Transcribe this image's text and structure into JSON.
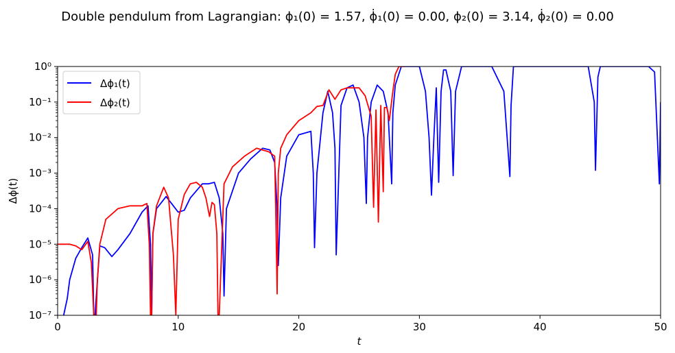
{
  "chart_data": {
    "type": "line",
    "title": "Double pendulum from Lagrangian:   ϕ₁(0) = 1.57,  ϕ̇₁(0) = 0.00,  ϕ₂(0) = 3.14,  ϕ̇₂(0) = 0.00",
    "xlabel": "t",
    "ylabel": "Δϕ(t)",
    "xlim": [
      0,
      50
    ],
    "ylim": [
      1e-07,
      1
    ],
    "yscale": "log",
    "grid": false,
    "legend_position": "top-left",
    "x_ticks": [
      0,
      10,
      20,
      30,
      40,
      50
    ],
    "x_tick_labels": [
      "0",
      "10",
      "20",
      "30",
      "40",
      "50"
    ],
    "y_ticks": [
      1e-07,
      1e-06,
      1e-05,
      0.0001,
      0.001,
      0.01,
      0.1,
      1
    ],
    "y_tick_labels": [
      "10⁻⁷",
      "10⁻⁶",
      "10⁻⁵",
      "10⁻⁴",
      "10⁻³",
      "10⁻²",
      "10⁻¹",
      "10⁰"
    ],
    "series": [
      {
        "name": "Δϕ₁(t)",
        "color": "#0000ff",
        "x": [
          0.5,
          0.8,
          1.0,
          1.5,
          2.0,
          2.5,
          2.9,
          3.0,
          3.1,
          3.5,
          3.9,
          4.5,
          5.0,
          6.0,
          7.0,
          7.5,
          7.7,
          7.8,
          7.9,
          8.2,
          9.0,
          10.0,
          10.5,
          11.0,
          12.0,
          12.5,
          13.0,
          13.4,
          13.7,
          13.8,
          14.0,
          15.0,
          16.0,
          17.0,
          17.6,
          18.0,
          18.2,
          18.3,
          18.5,
          19.0,
          20.0,
          21.0,
          21.2,
          21.3,
          21.5,
          22.0,
          22.4,
          22.8,
          23.0,
          23.1,
          23.5,
          24.0,
          24.5,
          25.0,
          25.4,
          25.6,
          25.7,
          26.0,
          26.5,
          27.0,
          27.4,
          27.7,
          27.8,
          28.0,
          28.5,
          29.0,
          30.0,
          30.5,
          30.8,
          31.0,
          31.2,
          31.4,
          31.6,
          31.8,
          32.0,
          32.2,
          32.6,
          32.8,
          33.0,
          33.5,
          36.0,
          37.0,
          37.5,
          37.6,
          37.8,
          38.0,
          38.5,
          44.0,
          44.5,
          44.6,
          44.8,
          45.0,
          45.5,
          48.0,
          49.0,
          49.5,
          49.9,
          50.0
        ],
        "y": [
          1e-07,
          3e-07,
          1e-06,
          4e-06,
          8e-06,
          1.5e-05,
          5e-06,
          1e-07,
          1e-07,
          9e-06,
          8e-06,
          4.5e-06,
          7e-06,
          2e-05,
          8e-05,
          0.00012,
          1e-05,
          1e-07,
          2e-05,
          0.0001,
          0.00022,
          8e-05,
          9e-05,
          0.0002,
          0.0005,
          0.0005,
          0.00055,
          0.0002,
          2e-05,
          3.5e-07,
          0.0001,
          0.001,
          0.0025,
          0.005,
          0.0045,
          0.002,
          0.0001,
          2.5e-06,
          0.0002,
          0.003,
          0.012,
          0.015,
          0.001,
          8e-06,
          0.001,
          0.05,
          0.2,
          0.05,
          0.005,
          5e-06,
          0.08,
          0.25,
          0.3,
          0.1,
          0.01,
          0.00014,
          0.01,
          0.1,
          0.3,
          0.2,
          0.05,
          0.0005,
          0.05,
          0.3,
          1,
          1,
          1,
          0.2,
          0.01,
          0.00024,
          0.01,
          0.25,
          0.00055,
          0.2,
          0.8,
          0.8,
          0.2,
          0.00085,
          0.2,
          1,
          1,
          0.2,
          0.0008,
          0.08,
          1,
          1,
          1,
          1,
          0.1,
          0.0012,
          0.5,
          1,
          1,
          1,
          1,
          0.7,
          0.0005,
          0.1
        ]
      },
      {
        "name": "Δϕ₂(t)",
        "color": "#ff0000",
        "x": [
          0,
          1.0,
          1.5,
          2.0,
          2.5,
          2.8,
          3.0,
          3.2,
          3.3,
          3.5,
          4.0,
          5.0,
          6.0,
          7.0,
          7.4,
          7.6,
          7.7,
          7.8,
          7.9,
          8.2,
          8.8,
          9.2,
          9.6,
          9.8,
          10.0,
          10.5,
          11.0,
          11.5,
          12.0,
          12.3,
          12.6,
          12.8,
          13.0,
          13.2,
          13.3,
          13.4,
          13.8,
          14.5,
          15.5,
          16.5,
          17.5,
          18.0,
          18.1,
          18.2,
          18.3,
          18.5,
          19.0,
          20.0,
          21.0,
          21.5,
          22.0,
          22.5,
          23.0,
          23.5,
          24.0,
          25.0,
          25.5,
          26.0,
          26.2,
          26.4,
          26.6,
          26.8,
          27.0,
          27.1,
          27.3,
          27.5,
          27.8,
          28.0,
          28.3,
          28.5,
          28.8
        ],
        "y": [
          1e-05,
          1e-05,
          9e-06,
          7e-06,
          1.2e-05,
          3e-06,
          1e-07,
          1e-07,
          1e-06,
          1e-05,
          5e-05,
          0.0001,
          0.00012,
          0.00012,
          0.00014,
          1e-05,
          1e-07,
          1e-07,
          2e-05,
          0.00012,
          0.0004,
          0.0002,
          5e-06,
          1e-07,
          5e-05,
          0.00025,
          0.0005,
          0.00055,
          0.0004,
          0.0002,
          6e-05,
          0.00015,
          0.00013,
          2e-05,
          1e-07,
          1e-07,
          0.0005,
          0.0015,
          0.003,
          0.005,
          0.004,
          0.003,
          5e-05,
          4e-07,
          0.001,
          0.005,
          0.012,
          0.03,
          0.05,
          0.075,
          0.08,
          0.22,
          0.12,
          0.22,
          0.25,
          0.25,
          0.15,
          0.04,
          0.00011,
          0.06,
          4.2e-05,
          0.08,
          0.0003,
          0.07,
          0.07,
          0.03,
          0.2,
          0.6,
          1,
          1,
          1
        ]
      }
    ]
  }
}
